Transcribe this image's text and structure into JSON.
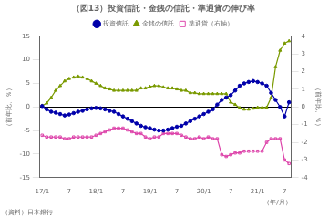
{
  "chart_data": {
    "type": "line",
    "title": "（図13）投資信託・金銭の信託・準通貨の伸び率",
    "ylabel": "（前年比、％）",
    "y2label": "（前年比、％）",
    "xlabel": "（年/月）",
    "annotations": [
      "（資料）日本銀行"
    ],
    "categories": [
      "17/1",
      null,
      null,
      null,
      null,
      null,
      "7",
      null,
      null,
      null,
      null,
      null,
      "18/1",
      null,
      null,
      null,
      null,
      null,
      "7",
      null,
      null,
      null,
      null,
      null,
      "19/1",
      null,
      null,
      null,
      null,
      null,
      "7",
      null,
      null,
      null,
      null,
      null,
      "20/1",
      null,
      null,
      null,
      null,
      null,
      "7",
      null,
      null,
      null,
      null,
      null,
      "21/1",
      null,
      null,
      null,
      null,
      null,
      "7",
      null
    ],
    "series": [
      {
        "name": "投資信託",
        "color": "#0000aa",
        "marker": "circle",
        "axis": "y",
        "values": [
          0.2,
          -0.5,
          -1.0,
          -1.2,
          -1.5,
          -1.8,
          -1.6,
          -1.3,
          -1.0,
          -0.8,
          -0.5,
          -0.3,
          -0.2,
          -0.3,
          -0.5,
          -0.8,
          -1.0,
          -1.5,
          -2.0,
          -2.5,
          -3.0,
          -3.5,
          -4.0,
          -4.3,
          -4.5,
          -4.8,
          -5.0,
          -5.0,
          -4.8,
          -4.5,
          -4.2,
          -4.0,
          -3.5,
          -3.0,
          -2.5,
          -2.0,
          -1.5,
          -1.0,
          -0.5,
          0.5,
          1.5,
          2.0,
          2.5,
          3.5,
          4.5,
          5.0,
          5.3,
          5.5,
          5.3,
          5.0,
          4.5,
          3.0,
          1.5,
          0.0,
          -2.0,
          1.0
        ]
      },
      {
        "name": "金銭の信託",
        "color": "#7a9a00",
        "marker": "triangle",
        "axis": "y",
        "values": [
          0.3,
          0.8,
          2.0,
          3.5,
          4.5,
          5.5,
          6.0,
          6.3,
          6.5,
          6.3,
          6.0,
          5.5,
          5.0,
          4.5,
          4.0,
          3.8,
          3.5,
          3.5,
          3.5,
          3.5,
          3.5,
          3.5,
          4.0,
          4.0,
          4.3,
          4.5,
          4.5,
          4.2,
          4.0,
          4.0,
          3.8,
          3.5,
          3.5,
          3.0,
          3.0,
          2.8,
          2.8,
          2.8,
          2.8,
          2.8,
          2.8,
          2.8,
          1.0,
          0.5,
          -0.2,
          -0.5,
          -0.5,
          -0.3,
          -0.1,
          -0.1,
          -0.1,
          2.0,
          8.5,
          12.0,
          13.5,
          14.0
        ]
      },
      {
        "name": "準通貨（右軸）",
        "color": "#dd44aa",
        "marker": "square",
        "axis": "y2",
        "values": [
          -1.6,
          -1.7,
          -1.7,
          -1.7,
          -1.7,
          -1.8,
          -1.8,
          -1.7,
          -1.7,
          -1.7,
          -1.7,
          -1.7,
          -1.6,
          -1.5,
          -1.4,
          -1.3,
          -1.2,
          -1.2,
          -1.2,
          -1.3,
          -1.4,
          -1.5,
          -1.5,
          -1.7,
          -1.8,
          -1.7,
          -1.7,
          -1.5,
          -1.5,
          -1.5,
          -1.5,
          -1.6,
          -1.7,
          -1.8,
          -1.8,
          -1.7,
          -1.8,
          -1.7,
          -1.8,
          -1.8,
          -2.7,
          -2.8,
          -2.7,
          -2.6,
          -2.6,
          -2.5,
          -2.5,
          -2.5,
          -2.5,
          -2.5,
          -2.0,
          -1.8,
          -1.8,
          -1.8,
          -3.0,
          -3.2
        ]
      }
    ],
    "ylim": [
      -15,
      15
    ],
    "yticks": [
      -15,
      -10,
      -5,
      0,
      5,
      10,
      15
    ],
    "y2lim": [
      -4,
      4
    ],
    "y2ticks": [
      -4,
      -3,
      -2,
      -1,
      0,
      1,
      2,
      3,
      4
    ],
    "grid": false,
    "legend": "top"
  }
}
